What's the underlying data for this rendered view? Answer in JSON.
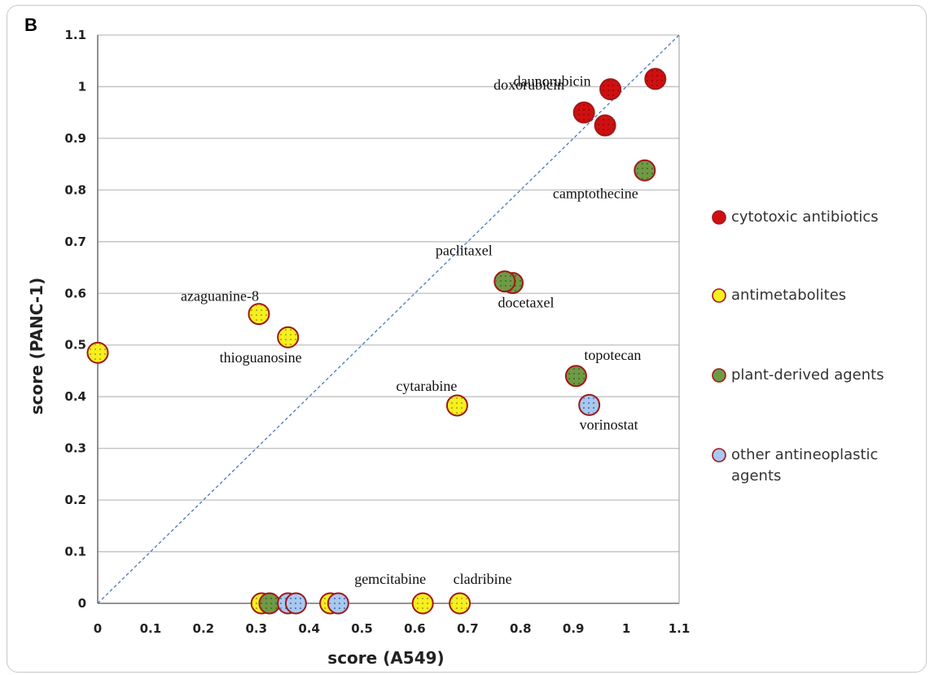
{
  "panel_label": "B",
  "colors": {
    "cytotoxic": "#d01010",
    "antimetabolite": "#f7ef1e",
    "plant": "#6f9a45",
    "other": "#a9c8ee",
    "edge": "#a01818",
    "diagonal": "#4a78c2",
    "grid": "#bfbfbf"
  },
  "chart_data": {
    "type": "scatter",
    "xlabel": "score (A549)",
    "ylabel": "score (PANC-1)",
    "xlim": [
      0,
      1.1
    ],
    "ylim": [
      0,
      1.1
    ],
    "x_ticks": [
      "0",
      "0.1",
      "0.2",
      "0.3",
      "0.4",
      "0.5",
      "0.6",
      "0.7",
      "0.8",
      "0.9",
      "1",
      "1.1"
    ],
    "y_ticks": [
      "0",
      "0.1",
      "0.2",
      "0.3",
      "0.4",
      "0.5",
      "0.6",
      "0.7",
      "0.8",
      "0.9",
      "1",
      "1.1"
    ],
    "grid": "horizontal",
    "reference_line": "y = x (dashed)",
    "legend_placement": "right",
    "series": [
      {
        "name": "cytotoxic antibiotics",
        "key": "cytotoxic",
        "points": [
          {
            "x": 0.97,
            "y": 0.995,
            "label": "daunorubicin"
          },
          {
            "x": 1.055,
            "y": 1.015,
            "label": ""
          },
          {
            "x": 0.92,
            "y": 0.95,
            "label": "doxorubicin"
          },
          {
            "x": 0.96,
            "y": 0.925,
            "label": ""
          }
        ]
      },
      {
        "name": "antimetabolites",
        "key": "antimetabolite",
        "points": [
          {
            "x": 0.0,
            "y": 0.485,
            "label": ""
          },
          {
            "x": 0.305,
            "y": 0.56,
            "label": "azaguanine-8"
          },
          {
            "x": 0.36,
            "y": 0.515,
            "label": "thioguanosine"
          },
          {
            "x": 0.68,
            "y": 0.383,
            "label": "cytarabine"
          },
          {
            "x": 0.31,
            "y": 0.0,
            "label": ""
          },
          {
            "x": 0.44,
            "y": 0.0,
            "label": ""
          },
          {
            "x": 0.615,
            "y": 0.0,
            "label": "gemcitabine"
          },
          {
            "x": 0.685,
            "y": 0.0,
            "label": "cladribine"
          }
        ]
      },
      {
        "name": "plant-derived agents",
        "key": "plant",
        "points": [
          {
            "x": 1.035,
            "y": 0.838,
            "label": "camptothecine"
          },
          {
            "x": 0.785,
            "y": 0.62,
            "label": "docetaxel"
          },
          {
            "x": 0.77,
            "y": 0.623,
            "label": "paclitaxel"
          },
          {
            "x": 0.905,
            "y": 0.44,
            "label": "topotecan"
          },
          {
            "x": 0.325,
            "y": 0.0,
            "label": ""
          }
        ]
      },
      {
        "name": "other antineoplastic agents",
        "key": "other",
        "points": [
          {
            "x": 0.93,
            "y": 0.384,
            "label": "vorinostat"
          },
          {
            "x": 0.36,
            "y": 0.0,
            "label": ""
          },
          {
            "x": 0.375,
            "y": 0.0,
            "label": ""
          },
          {
            "x": 0.455,
            "y": 0.0,
            "label": ""
          }
        ]
      }
    ],
    "legend": [
      "cytotoxic antibiotics",
      "antimetabolites",
      "plant-derived agents",
      "other antineoplastic agents"
    ]
  }
}
